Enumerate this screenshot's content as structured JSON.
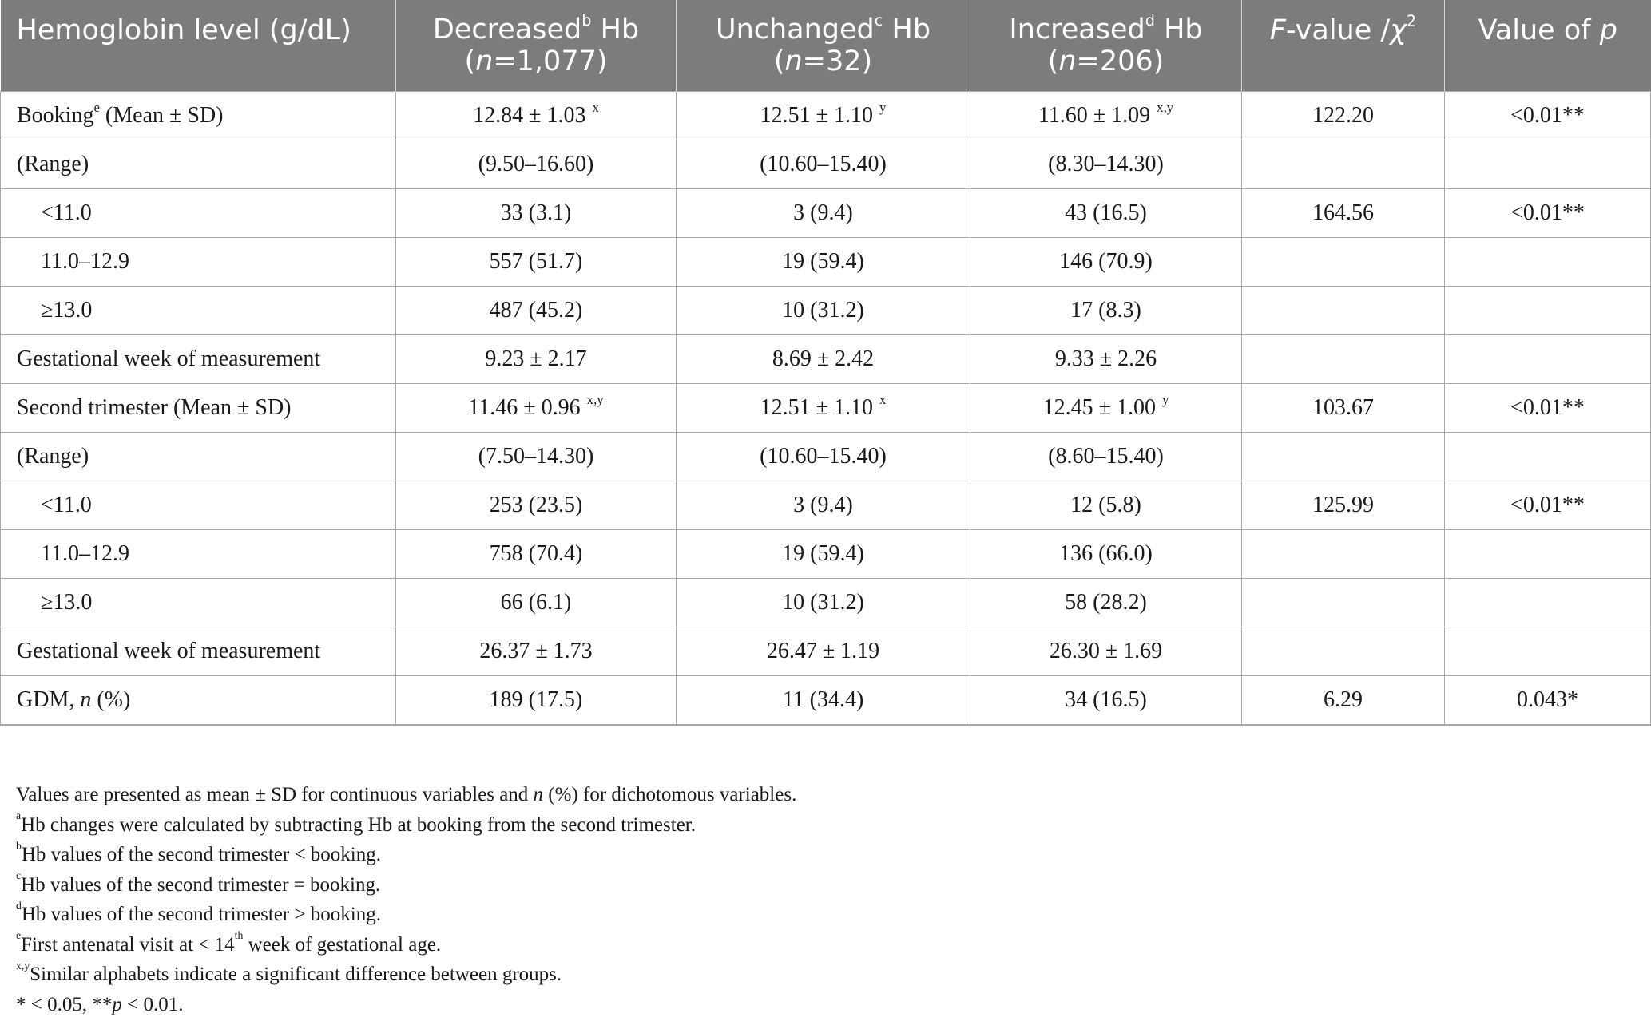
{
  "headers": {
    "col1": "Hemoglobin level (g/dL)",
    "col2": {
      "pre": "Decreased",
      "sup": "b",
      "post": " Hb",
      "n": "(n=1,077)"
    },
    "col3": {
      "pre": "Unchanged",
      "sup": "c",
      "post": " Hb",
      "n": "(n=32)"
    },
    "col4": {
      "pre": "Increased",
      "sup": "d",
      "post": " Hb",
      "n": "(n=206)"
    },
    "col5": {
      "f": "F",
      "rest": "-value /",
      "chi": "χ",
      "sup": "2"
    },
    "col6": {
      "pre": "Value of ",
      "p": "p"
    }
  },
  "rows": [
    {
      "label": "Booking",
      "label_sup": "e",
      "label_post": " (Mean ± SD)",
      "c1": "12.84 ± 1.03",
      "c1_sup": "x",
      "c2": "12.51 ± 1.10",
      "c2_sup": "y",
      "c3": "11.60 ± 1.09",
      "c3_sup": "x,y",
      "c4": "122.20",
      "c5": "<0.01**"
    },
    {
      "label": "(Range)",
      "c1": "(9.50–16.60)",
      "c2": "(10.60–15.40)",
      "c3": "(8.30–14.30)",
      "c4": "",
      "c5": ""
    },
    {
      "label": "<11.0",
      "indent": true,
      "c1": "33 (3.1)",
      "c2": "3 (9.4)",
      "c3": "43 (16.5)",
      "c4": "164.56",
      "c5": "<0.01**"
    },
    {
      "label": "11.0–12.9",
      "indent": true,
      "c1": "557 (51.7)",
      "c2": "19 (59.4)",
      "c3": "146 (70.9)",
      "c4": "",
      "c5": ""
    },
    {
      "label": "≥13.0",
      "indent": true,
      "c1": "487 (45.2)",
      "c2": "10 (31.2)",
      "c3": "17 (8.3)",
      "c4": "",
      "c5": ""
    },
    {
      "label": "Gestational week of measurement",
      "c1": "9.23 ± 2.17",
      "c2": "8.69 ± 2.42",
      "c3": "9.33 ± 2.26",
      "c4": "",
      "c5": ""
    },
    {
      "label": "Second trimester (Mean ± SD)",
      "c1": "11.46 ± 0.96",
      "c1_sup": "x,y",
      "c2": "12.51 ± 1.10",
      "c2_sup": "x",
      "c3": "12.45 ± 1.00",
      "c3_sup": "y",
      "c4": "103.67",
      "c5": "<0.01**"
    },
    {
      "label": "(Range)",
      "c1": "(7.50–14.30)",
      "c2": "(10.60–15.40)",
      "c3": "(8.60–15.40)",
      "c4": "",
      "c5": ""
    },
    {
      "label": "<11.0",
      "indent": true,
      "c1": "253 (23.5)",
      "c2": "3 (9.4)",
      "c3": "12 (5.8)",
      "c4": "125.99",
      "c5": "<0.01**"
    },
    {
      "label": "11.0–12.9",
      "indent": true,
      "c1": "758 (70.4)",
      "c2": "19 (59.4)",
      "c3": "136 (66.0)",
      "c4": "",
      "c5": ""
    },
    {
      "label": "≥13.0",
      "indent": true,
      "c1": "66 (6.1)",
      "c2": "10 (31.2)",
      "c3": "58 (28.2)",
      "c4": "",
      "c5": ""
    },
    {
      "label": "Gestational week of measurement",
      "c1": "26.37 ± 1.73",
      "c2": "26.47 ± 1.19",
      "c3": "26.30 ± 1.69",
      "c4": "",
      "c5": ""
    },
    {
      "label": "GDM, ",
      "label_it": "n",
      "label_post": " (%)",
      "c1": "189 (17.5)",
      "c2": "11 (34.4)",
      "c3": "34 (16.5)",
      "c4": "6.29",
      "c5": "0.043*"
    }
  ],
  "notes": {
    "n1": {
      "a": "Values are presented as mean ± SD for continuous variables and ",
      "it": "n",
      "b": " (%) for dichotomous variables."
    },
    "n2": {
      "sup": "a",
      "text": "Hb changes were calculated by subtracting Hb at booking from the second trimester."
    },
    "n3": {
      "sup": "b",
      "text": "Hb values of the second trimester < booking."
    },
    "n4": {
      "sup": "c",
      "text": "Hb values of the second trimester = booking."
    },
    "n5": {
      "sup": "d",
      "text": "Hb values of the second trimester > booking."
    },
    "n6": {
      "sup": "e",
      "a": "First antenatal visit at < 14",
      "sup2": "th",
      "b": " week of gestational age."
    },
    "n7": {
      "sup": "x,y",
      "text": "Similar alphabets indicate a significant difference between groups."
    },
    "n8": {
      "a": "* < 0.05, **",
      "it": "p",
      "b": " < 0.01."
    }
  }
}
